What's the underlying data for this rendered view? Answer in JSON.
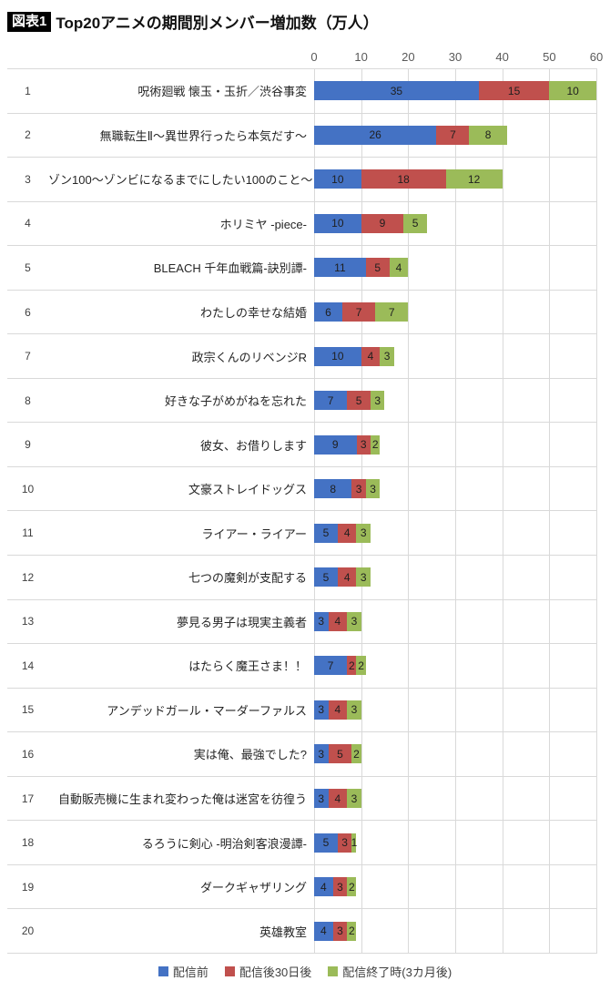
{
  "header": {
    "badge": "図表1",
    "title": "Top20アニメの期間別メンバー増加数（万人）"
  },
  "chart_data": {
    "type": "bar",
    "orientation": "horizontal",
    "stacked": true,
    "title": "Top20アニメの期間別メンバー増加数（万人）",
    "xlabel": "",
    "ylabel": "",
    "xlim": [
      0,
      60
    ],
    "x_ticks": [
      "0",
      "10",
      "20",
      "30",
      "40",
      "50",
      "60"
    ],
    "grid": true,
    "legend_position": "bottom",
    "ranks": [
      "1",
      "2",
      "3",
      "4",
      "5",
      "6",
      "7",
      "8",
      "9",
      "10",
      "11",
      "12",
      "13",
      "14",
      "15",
      "16",
      "17",
      "18",
      "19",
      "20"
    ],
    "categories": [
      "呪術廻戦 懐玉・玉折／渋谷事変",
      "無職転生Ⅱ～異世界行ったら本気だす～",
      "ゾン100～ゾンビになるまでにしたい100のこと～",
      "ホリミヤ -piece-",
      "BLEACH 千年血戦篇-訣別譚-",
      "わたしの幸せな結婚",
      "政宗くんのリベンジR",
      "好きな子がめがねを忘れた",
      "彼女、お借りします",
      "文豪ストレイドッグス",
      "ライアー・ライアー",
      "七つの魔剣が支配する",
      "夢見る男子は現実主義者",
      "はたらく魔王さま！！",
      "アンデッドガール・マーダーファルス",
      "実は俺、最強でした?",
      "自動販売機に生まれ変わった俺は迷宮を彷徨う",
      "るろうに剣心 -明治剣客浪漫譚-",
      "ダークギャザリング",
      "英雄教室"
    ],
    "series": [
      {
        "name": "配信前",
        "color": "#4472C4",
        "values": [
          35,
          26,
          10,
          10,
          11,
          6,
          10,
          7,
          9,
          8,
          5,
          5,
          3,
          7,
          3,
          3,
          3,
          5,
          4,
          4
        ]
      },
      {
        "name": "配信後30日後",
        "color": "#C0504D",
        "values": [
          15,
          7,
          18,
          9,
          5,
          7,
          4,
          5,
          3,
          3,
          4,
          4,
          4,
          2,
          4,
          5,
          4,
          3,
          3,
          3
        ]
      },
      {
        "name": "配信終了時(3カ月後)",
        "color": "#9BBB59",
        "values": [
          10,
          8,
          12,
          5,
          4,
          7,
          3,
          3,
          2,
          3,
          3,
          3,
          3,
          2,
          3,
          2,
          3,
          1,
          2,
          2
        ]
      }
    ]
  }
}
